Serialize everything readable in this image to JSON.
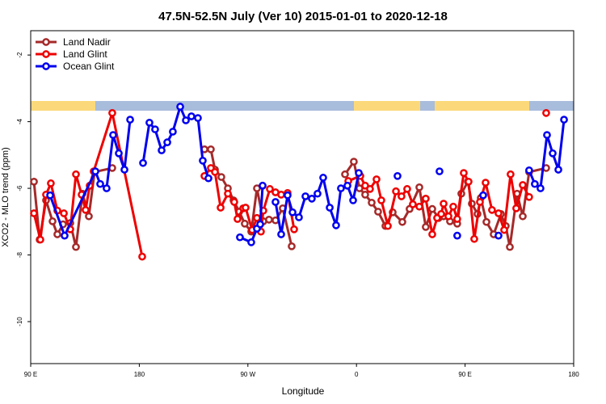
{
  "chart_data": {
    "type": "line",
    "title": "47.5N-52.5N July (Ver 10)   2015-01-01 to 2020-12-18",
    "x_label": "Longitude",
    "y_label": "XCO2 - MLO trend (ppm)",
    "xlim": [
      90,
      540
    ],
    "ylim": [
      -11.26,
      -1.27
    ],
    "xticks": [
      {
        "value": 90,
        "label": "90 E"
      },
      180,
      {
        "value": 270,
        "label": "90 W"
      },
      {
        "value": 360,
        "label": "0"
      },
      {
        "value": 450,
        "label": "90 E"
      },
      {
        "value": 540,
        "label": "180"
      }
    ],
    "yticks": [
      -2,
      -4,
      -6,
      -8,
      -10
    ],
    "legend": "top-left",
    "series": [
      {
        "name": "Land Nadir",
        "color": "#a52a2a",
        "x": [
          92.7,
          97.4,
          102.7,
          108.1,
          112.1,
          116.8,
          122.8,
          127.5,
          132.9,
          138.2,
          142.9,
          157.6,
          200,
          234.0,
          239.3,
          242.7,
          248.0,
          253.4,
          258.1,
          262.8,
          267.4,
          272.8,
          277.5,
          282.8,
          287.5,
          292.9,
          298.9,
          306.3,
          330,
          350.5,
          357.8,
          362.5,
          367.2,
          372.6,
          377.9,
          384.0,
          390.0,
          398.0,
          404.0,
          412.1,
          417.4,
          422.8,
          428.1,
          432.2,
          437.5,
          443.5,
          446.9,
          452.3,
          455.6,
          460.3,
          463.0,
          467.7,
          473.7,
          479.7,
          483.7,
          487.1,
          493.1,
          497.8,
          503.1,
          517.2
        ],
        "values": [
          -5.8,
          -7.54,
          -6.36,
          -6.99,
          -7.38,
          -7.08,
          -7.04,
          -7.76,
          -6.16,
          -6.84,
          -5.51,
          -5.39,
          null,
          -4.83,
          -4.83,
          -5.44,
          -5.66,
          -6.0,
          -6.36,
          -6.7,
          -7.06,
          -7.3,
          -6.0,
          -6.99,
          -6.94,
          -6.96,
          -6.6,
          -7.74,
          null,
          -5.58,
          -5.2,
          -6.0,
          -6.19,
          -6.43,
          -6.7,
          -7.13,
          -6.72,
          -7.01,
          -6.62,
          -5.97,
          -7.16,
          -6.62,
          -6.89,
          -6.84,
          -6.99,
          -7.06,
          -6.16,
          -5.8,
          -6.46,
          -6.77,
          -6.29,
          -7.01,
          -7.38,
          -6.77,
          -7.13,
          -7.76,
          -6.16,
          -6.84,
          -5.51,
          -5.39
        ]
      },
      {
        "name": "Land Glint",
        "color": "#ee0000",
        "x": [
          92.7,
          98.0,
          102.7,
          106.7,
          112.1,
          117.5,
          122.8,
          127.5,
          132.2,
          135.5,
          138.9,
          142.2,
          157.6,
          182.4,
          210,
          234.0,
          239.3,
          242.7,
          247.4,
          253.4,
          258.7,
          261.4,
          266.1,
          268.1,
          273.5,
          277.5,
          280.8,
          282.8,
          288.2,
          292.9,
          297.6,
          302.9,
          308.3,
          330,
          353.2,
          363.2,
          367.2,
          371.2,
          376.6,
          380.6,
          386.0,
          392.7,
          397.3,
          402.0,
          406.7,
          412.1,
          417.4,
          422.8,
          426.8,
          430.2,
          432.2,
          436.2,
          440.2,
          443.5,
          448.9,
          452.9,
          457.6,
          462.3,
          467.0,
          472.3,
          477.7,
          482.4,
          487.7,
          492.4,
          497.8,
          503.1,
          510,
          517.2
        ],
        "values": [
          -6.75,
          -7.54,
          -6.19,
          -5.85,
          -6.67,
          -6.75,
          -7.23,
          -5.58,
          -6.19,
          -6.65,
          -5.92,
          -5.49,
          -3.74,
          -8.05,
          null,
          -5.63,
          -5.39,
          -5.51,
          -6.58,
          -6.16,
          -6.41,
          -6.92,
          -6.6,
          -6.58,
          -7.25,
          -6.89,
          -7.3,
          -6.67,
          -6.02,
          -6.12,
          -6.19,
          -6.14,
          -7.23,
          null,
          -5.78,
          -5.63,
          -5.92,
          -6.02,
          -5.73,
          -6.36,
          -7.13,
          -6.09,
          -6.24,
          -6.02,
          -6.48,
          -6.55,
          -6.31,
          -7.38,
          -6.89,
          -6.77,
          -6.46,
          -6.84,
          -6.55,
          -6.92,
          -5.54,
          -5.8,
          -7.52,
          -6.41,
          -5.83,
          -6.65,
          -6.75,
          -7.25,
          -5.58,
          -6.6,
          -5.9,
          -6.26,
          null,
          -3.74
        ]
      },
      {
        "name": "Ocean Glint",
        "color": "#0000ee",
        "x": [
          106.1,
          118.1,
          143.6,
          147.6,
          152.9,
          158.3,
          163.0,
          167.7,
          172.4,
          178,
          183.1,
          188.4,
          193.1,
          198.5,
          203.2,
          207.8,
          213.9,
          218.6,
          223.2,
          228.6,
          232.6,
          237.3,
          250,
          263.4,
          272.8,
          277.5,
          280.2,
          282.2,
          288,
          292.9,
          297.6,
          302.9,
          307.0,
          312.3,
          317.7,
          323.0,
          327.7,
          332.4,
          337.8,
          343.1,
          347.1,
          352.5,
          357.2,
          361.9,
          380,
          394.0,
          410,
          428.8,
          436,
          443.5,
          455,
          465.0,
          470,
          477.7,
          490,
          503.1,
          507.8,
          512.5,
          517.9,
          522.6,
          527.3,
          532.0
        ],
        "values": [
          -6.21,
          -7.42,
          -5.49,
          -5.87,
          -6.0,
          -4.4,
          -4.95,
          -5.44,
          -3.94,
          null,
          -5.24,
          -4.03,
          -4.23,
          -4.86,
          -4.62,
          -4.3,
          -3.55,
          -3.96,
          -3.84,
          -3.89,
          -5.17,
          -5.7,
          null,
          -7.47,
          -7.62,
          -7.21,
          -7.08,
          -5.92,
          null,
          -6.41,
          -7.38,
          -6.21,
          -6.72,
          -6.87,
          -6.24,
          -6.31,
          -6.16,
          -5.68,
          -6.58,
          -7.11,
          -6.0,
          -5.92,
          -6.36,
          -5.54,
          null,
          -5.63,
          null,
          -5.49,
          null,
          -7.42,
          null,
          -6.21,
          null,
          -7.42,
          null,
          -5.46,
          -5.87,
          -6.0,
          -4.4,
          -4.95,
          -5.44,
          -3.94
        ]
      }
    ]
  }
}
